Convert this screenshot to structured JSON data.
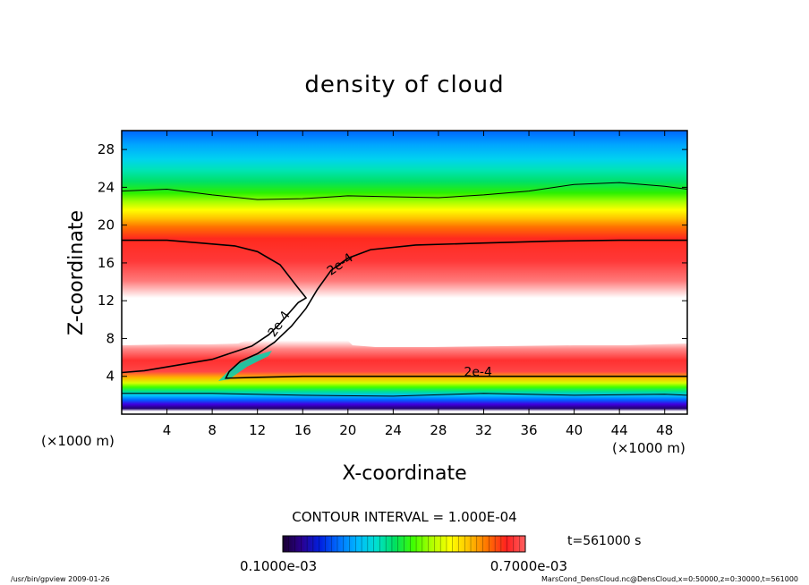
{
  "chart_data": {
    "type": "heatmap",
    "title": "density of cloud",
    "xlabel": "X-coordinate",
    "ylabel": "Z-coordinate",
    "x_unit": "(×1000 m)",
    "y_unit": "(×1000 m)",
    "xlim": [
      0,
      50
    ],
    "ylim": [
      0,
      30
    ],
    "x_ticks": [
      4,
      8,
      12,
      16,
      20,
      24,
      28,
      32,
      36,
      40,
      44,
      48
    ],
    "y_ticks": [
      4,
      8,
      12,
      16,
      20,
      24,
      28
    ],
    "contour_interval": "CONTOUR INTERVAL = 1.000E-04",
    "contour_labels": [
      {
        "text": "2e-4",
        "x": 19.5,
        "z": 15.5,
        "angle": -35
      },
      {
        "text": "2e-4",
        "x": 14.2,
        "z": 9.3,
        "angle": -55
      },
      {
        "text": "2e-4",
        "x": 31.5,
        "z": 4.0,
        "angle": 0
      }
    ],
    "contours": [
      {
        "level": "1e-4",
        "points": [
          [
            0,
            23.6
          ],
          [
            4,
            23.8
          ],
          [
            8,
            23.2
          ],
          [
            12,
            22.7
          ],
          [
            16,
            22.8
          ],
          [
            20,
            23.1
          ],
          [
            24,
            23.0
          ],
          [
            28,
            22.9
          ],
          [
            32,
            23.2
          ],
          [
            36,
            23.6
          ],
          [
            40,
            24.3
          ],
          [
            44,
            24.5
          ],
          [
            48,
            24.1
          ],
          [
            50,
            23.8
          ]
        ]
      },
      {
        "level": "2e-4",
        "points": [
          [
            0,
            18.4
          ],
          [
            4,
            18.4
          ],
          [
            7,
            18.1
          ],
          [
            10,
            17.8
          ],
          [
            12,
            17.2
          ],
          [
            14,
            15.8
          ],
          [
            15.5,
            13.5
          ],
          [
            16.3,
            12.3
          ],
          [
            15.6,
            11.8
          ],
          [
            14.8,
            10.7
          ],
          [
            14,
            9.6
          ],
          [
            13,
            8.4
          ],
          [
            11.5,
            7.2
          ],
          [
            10,
            6.6
          ],
          [
            8,
            5.8
          ],
          [
            5,
            5.2
          ],
          [
            2,
            4.6
          ],
          [
            0,
            4.4
          ]
        ]
      },
      {
        "level": "2e-4",
        "points": [
          [
            50,
            18.4
          ],
          [
            44,
            18.4
          ],
          [
            38,
            18.3
          ],
          [
            32,
            18.1
          ],
          [
            26,
            17.9
          ],
          [
            22,
            17.4
          ],
          [
            20,
            16.5
          ],
          [
            18.5,
            15.2
          ],
          [
            17.3,
            13.2
          ],
          [
            16.3,
            11.2
          ],
          [
            15,
            9.3
          ],
          [
            13.5,
            7.6
          ],
          [
            12,
            6.4
          ],
          [
            10.5,
            5.6
          ],
          [
            9.5,
            4.5
          ],
          [
            9.2,
            3.8
          ],
          [
            12,
            3.9
          ],
          [
            16,
            4.0
          ],
          [
            24,
            4.0
          ],
          [
            32,
            4.0
          ],
          [
            40,
            4.0
          ],
          [
            50,
            4.0
          ]
        ]
      },
      {
        "level": "1e-4",
        "points": [
          [
            0,
            2.2
          ],
          [
            8,
            2.2
          ],
          [
            16,
            2.0
          ],
          [
            24,
            1.9
          ],
          [
            32,
            2.2
          ],
          [
            40,
            2.0
          ],
          [
            48,
            2.1
          ],
          [
            50,
            2.0
          ]
        ]
      }
    ],
    "colorbar": {
      "min_label": "0.1000e-03",
      "max_label": "0.7000e-03",
      "colors": [
        "#1a0030",
        "#2a0090",
        "#0020e0",
        "#0070ff",
        "#00b8ff",
        "#00e0d0",
        "#00e060",
        "#40ff00",
        "#b0ff00",
        "#ffff00",
        "#ffc000",
        "#ff7000",
        "#ff2020",
        "#ff6060"
      ]
    },
    "time_label": "t=561000  s",
    "footer_left": "/usr/bin/gpview   2009-01-26",
    "footer_right": "MarsCond_DensCloud.nc@DensCloud,x=0:50000,z=0:30000,t=561000"
  }
}
